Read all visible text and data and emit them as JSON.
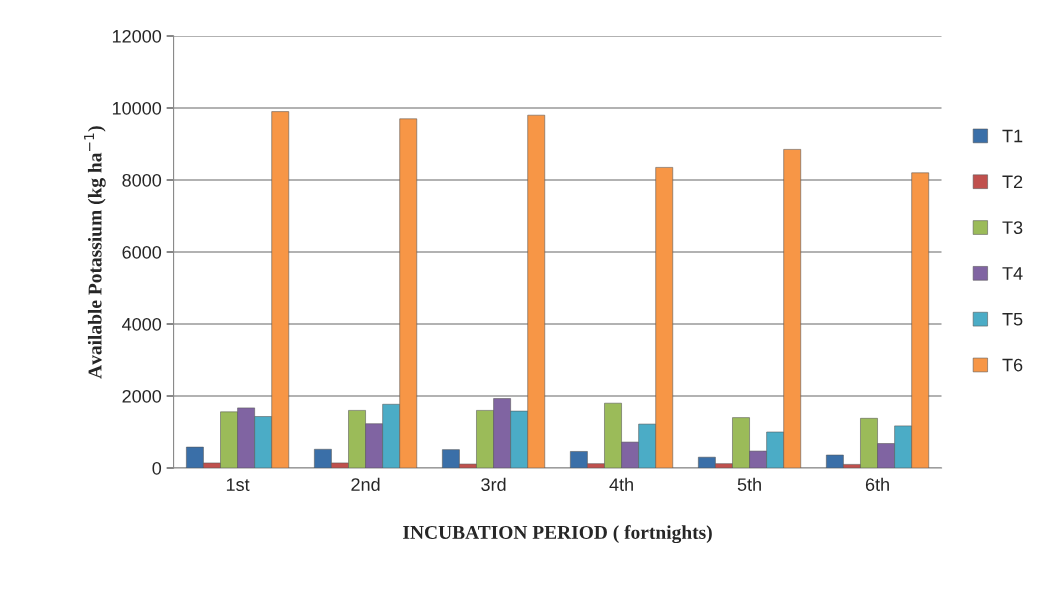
{
  "chart_data": {
    "type": "bar",
    "xlabel": "INCUBATION PERIOD ( fortnights)",
    "ylabel": "Available Potassium (kg ha$^{−1}$)",
    "categories": [
      "1st",
      "2nd",
      "3rd",
      "4th",
      "5th",
      "6th"
    ],
    "series": [
      {
        "name": "T1",
        "color": "#3a6fa8",
        "values": [
          580,
          520,
          510,
          460,
          300,
          360
        ]
      },
      {
        "name": "T2",
        "color": "#c0504d",
        "values": [
          140,
          140,
          110,
          120,
          120,
          100
        ]
      },
      {
        "name": "T3",
        "color": "#9bbb59",
        "values": [
          1560,
          1600,
          1600,
          1800,
          1400,
          1380
        ]
      },
      {
        "name": "T4",
        "color": "#8064a2",
        "values": [
          1670,
          1230,
          1930,
          720,
          470,
          680
        ]
      },
      {
        "name": "T5",
        "color": "#4bacc6",
        "values": [
          1430,
          1770,
          1580,
          1220,
          1000,
          1170
        ]
      },
      {
        "name": "T6",
        "color": "#f79646",
        "values": [
          9900,
          9700,
          9800,
          8350,
          8850,
          8200
        ]
      }
    ],
    "ylim": [
      0,
      12000
    ],
    "yticks": [
      0,
      2000,
      4000,
      6000,
      8000,
      10000,
      12000
    ],
    "grid": "y",
    "legend": "right"
  }
}
